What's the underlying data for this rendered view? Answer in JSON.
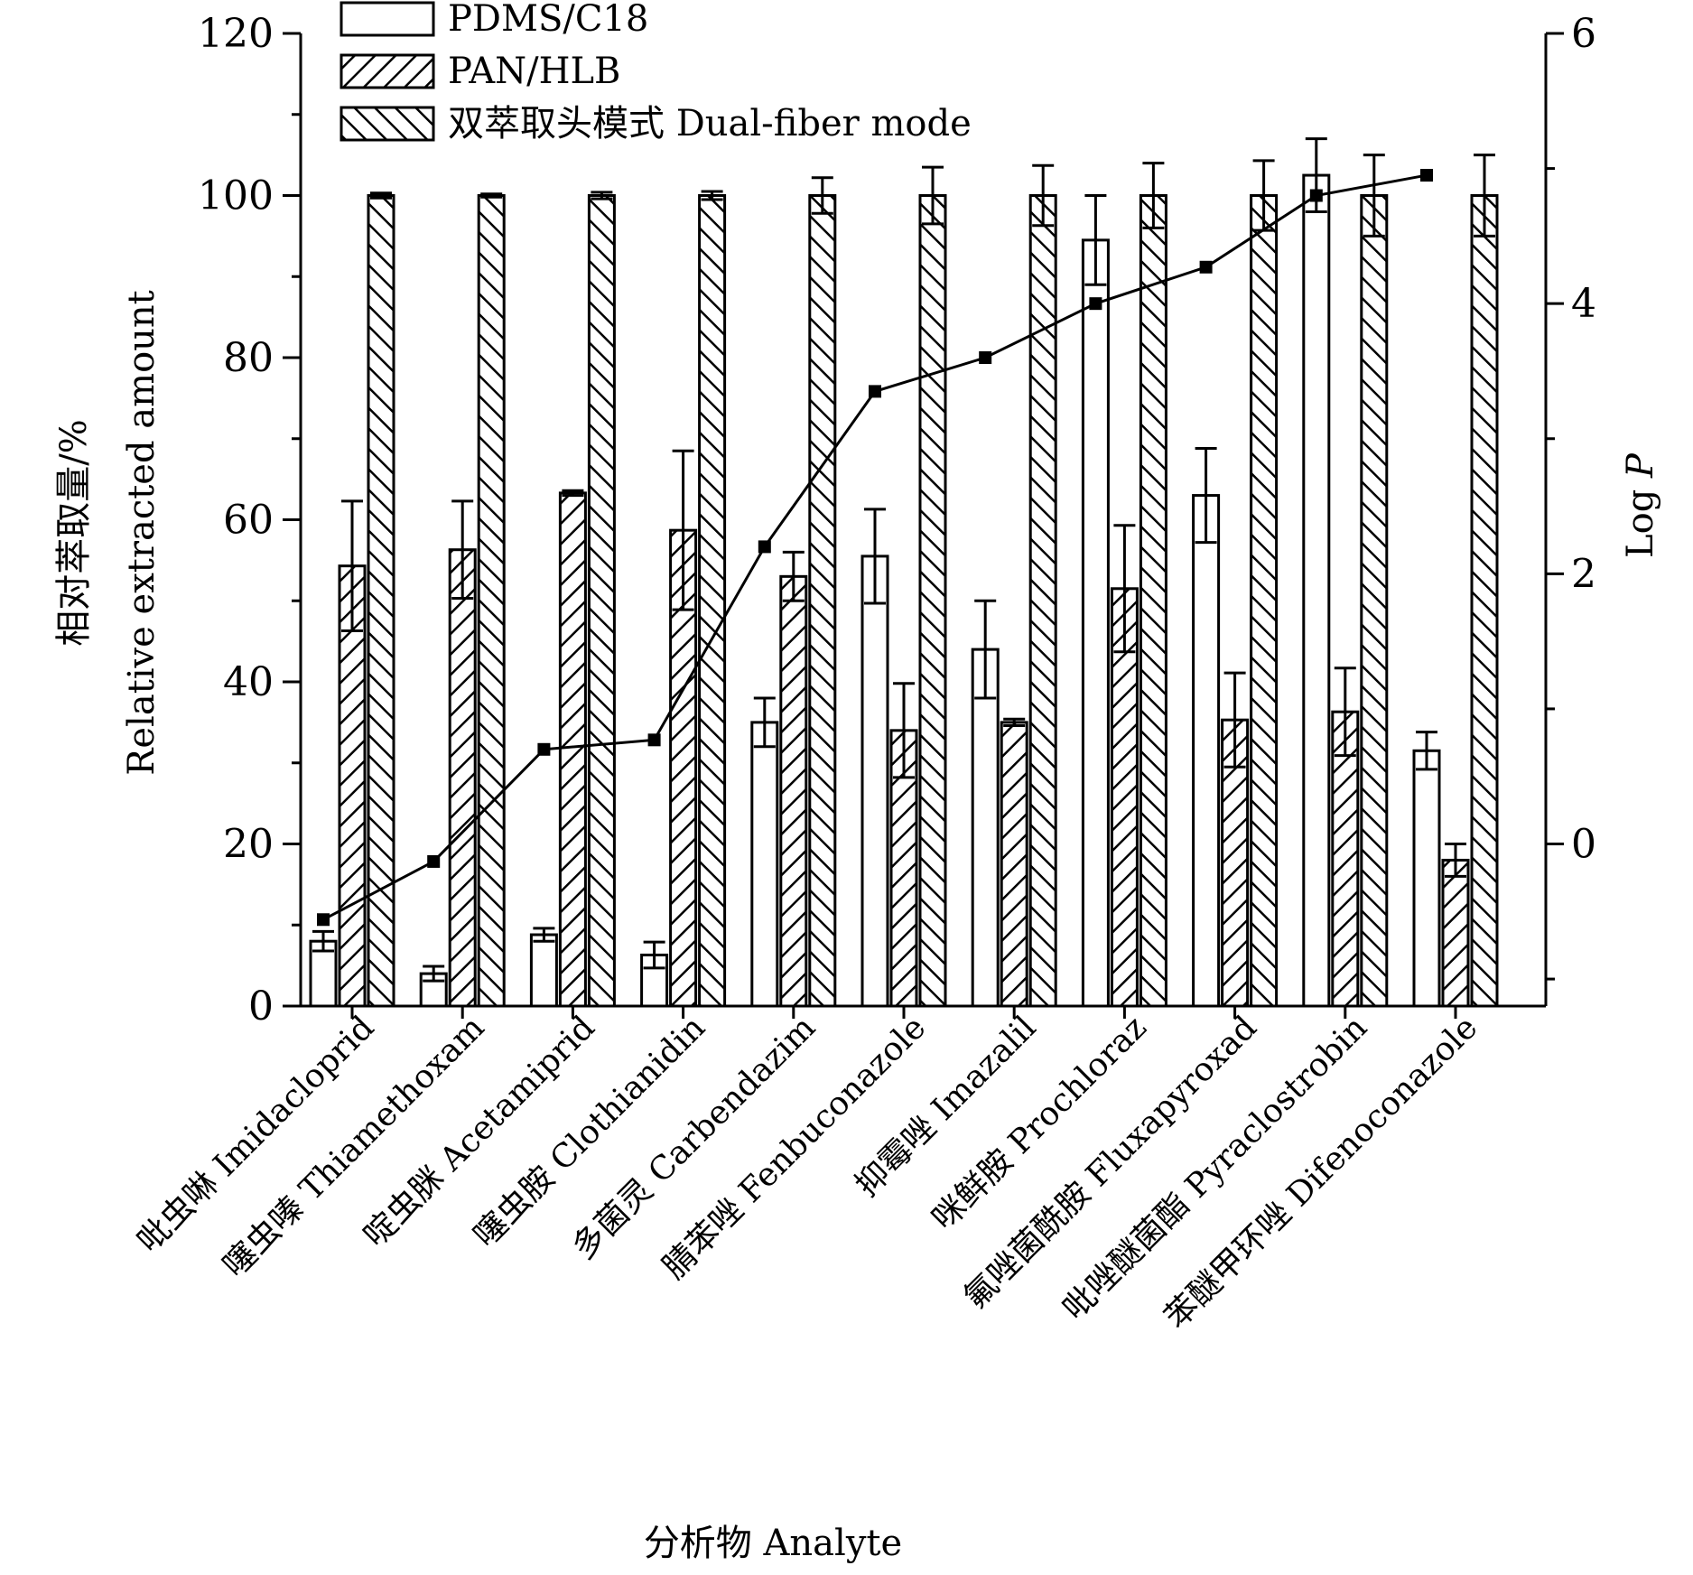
{
  "chart_data": {
    "type": "bar",
    "categories": [
      "吡虫啉 Imidacloprid",
      "噻虫嗪 Thiamethoxam",
      "啶虫脒 Acetamiprid",
      "噻虫胺 Clothianidin",
      "多菌灵 Carbendazim",
      "腈苯唑 Fenbuconazole",
      "抑霉唑 Imazalil",
      "咪鲜胺 Prochloraz",
      "氟唑菌酰胺 Fluxapyroxad",
      "吡唑醚菌酯 Pyraclostrobin",
      "苯醚甲环唑 Difenoconazole"
    ],
    "series": [
      {
        "name": "PDMS/C18",
        "pattern": "none",
        "values": [
          8,
          4,
          8.8,
          6.3,
          35,
          55.5,
          44,
          94.5,
          63,
          102.5,
          31.5
        ],
        "errors": [
          1.2,
          0.9,
          0.8,
          1.6,
          3.0,
          5.8,
          6.0,
          5.5,
          5.8,
          4.5,
          2.3
        ]
      },
      {
        "name": "PAN/HLB",
        "pattern": "forward-hatch",
        "values": [
          54.3,
          56.3,
          63.3,
          58.7,
          53,
          34,
          35,
          51.5,
          35.3,
          36.3,
          18
        ],
        "errors": [
          8,
          6,
          0.3,
          9.8,
          3,
          5.8,
          0.4,
          7.8,
          5.8,
          5.4,
          2
        ]
      },
      {
        "name": "双萃取头模式 Dual-fiber mode",
        "pattern": "back-hatch",
        "values": [
          100,
          100,
          100,
          100,
          100,
          100,
          100,
          100,
          100,
          100,
          100
        ],
        "errors": [
          0.3,
          0.2,
          0.4,
          0.5,
          2.2,
          3.5,
          3.7,
          4.0,
          4.3,
          5.0,
          5.0
        ]
      }
    ],
    "line_series": {
      "name": "Log P",
      "values": [
        -0.56,
        -0.13,
        0.7,
        0.77,
        2.2,
        3.35,
        3.6,
        4.0,
        4.27,
        4.8,
        4.95
      ]
    },
    "ylim": [
      0,
      120
    ],
    "yticks": [
      "0",
      "20",
      "40",
      "60",
      "80",
      "100",
      "120"
    ],
    "y2lim": [
      -1.2,
      6
    ],
    "y2ticks": [
      "0",
      "2",
      "4",
      "6"
    ],
    "xlabel": "分析物 Analyte",
    "ylabel_cn": "相对萃取量/%",
    "ylabel_en": "Relative extracted amount",
    "y2label": "Log",
    "y2label_italic": "P",
    "legend_position": "top-left",
    "grid": false
  }
}
